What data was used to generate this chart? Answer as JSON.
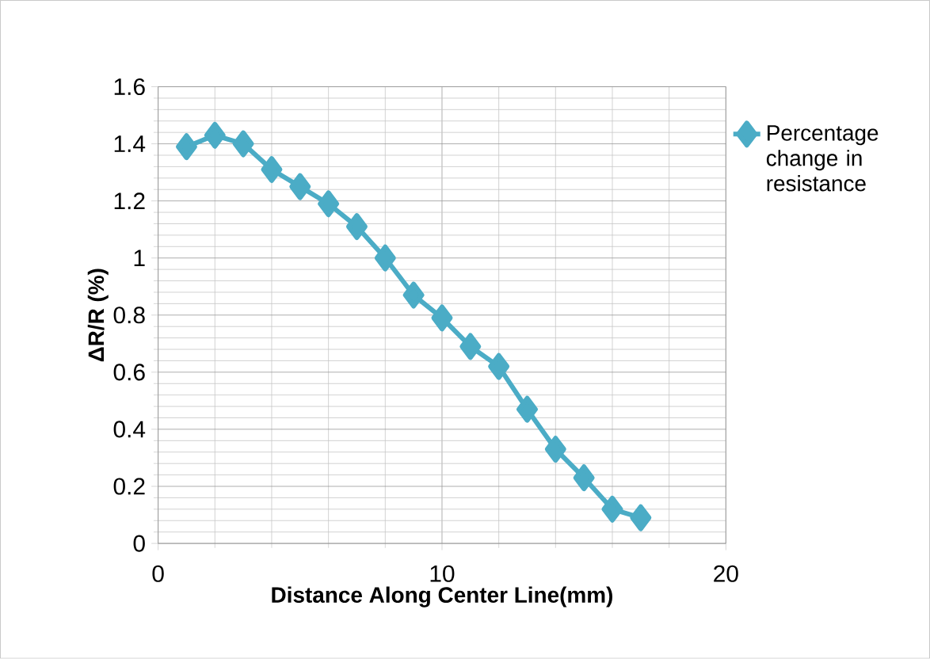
{
  "chart_data": {
    "type": "line",
    "xlabel": "Distance Along Center Line(mm)",
    "ylabel": "ΔR/R (%)",
    "x": [
      1,
      2,
      3,
      4,
      5,
      6,
      7,
      8,
      9,
      10,
      11,
      12,
      13,
      14,
      15,
      16,
      17
    ],
    "series": [
      {
        "name": "Percentage change in resistance",
        "color": "#4bacc6",
        "values": [
          1.39,
          1.43,
          1.4,
          1.31,
          1.25,
          1.19,
          1.11,
          1.0,
          0.87,
          0.79,
          0.69,
          0.62,
          0.47,
          0.33,
          0.23,
          0.12,
          0.09
        ]
      }
    ],
    "xlim": [
      0,
      20
    ],
    "ylim": [
      0,
      1.6
    ],
    "xticks": [
      0,
      10,
      20
    ],
    "yticks": [
      0,
      0.2,
      0.4,
      0.6,
      0.8,
      1,
      1.2,
      1.4,
      1.6
    ],
    "grid": true,
    "legend": "right",
    "marker": "diamond",
    "line_style": "solid"
  }
}
